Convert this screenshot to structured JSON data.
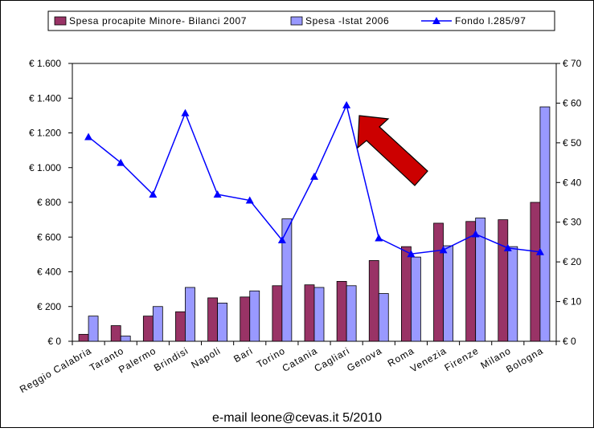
{
  "chart_data": {
    "type": "bar",
    "categories": [
      "Reggio Calabria",
      "Taranto",
      "Palermo",
      "Brindisi",
      "Napoli",
      "Bari",
      "Torino",
      "Catania",
      "Cagliari",
      "Genova",
      "Roma",
      "Venezia",
      "Firenze",
      "Milano",
      "Bologna"
    ],
    "series": [
      {
        "name": "Spesa procapite Minore- Bilanci 2007",
        "type": "bar",
        "axis": "left",
        "color": "#993366",
        "values": [
          40,
          90,
          145,
          170,
          250,
          255,
          320,
          325,
          345,
          465,
          545,
          680,
          690,
          700,
          800
        ]
      },
      {
        "name": "Spesa -Istat 2006",
        "type": "bar",
        "axis": "left",
        "color": "#9999ff",
        "values": [
          145,
          30,
          200,
          310,
          220,
          290,
          705,
          310,
          320,
          275,
          485,
          550,
          710,
          545,
          1350
        ]
      },
      {
        "name": "Fondo l.285/97",
        "type": "line",
        "axis": "right",
        "color": "#0000ff",
        "values": [
          51.5,
          45,
          37,
          57.5,
          37,
          35.5,
          25.5,
          41.5,
          59.5,
          26,
          22,
          23,
          27,
          23.5,
          22.5
        ]
      }
    ],
    "y_left": {
      "ylim": [
        0,
        1600
      ],
      "ticks": [
        0,
        200,
        400,
        600,
        800,
        1000,
        1200,
        1400,
        1600
      ],
      "tick_labels": [
        "€ 0",
        "€ 200",
        "€ 400",
        "€ 600",
        "€ 800",
        "€ 1.000",
        "€ 1.200",
        "€ 1.400",
        "€ 1.600"
      ]
    },
    "y_right": {
      "ylim": [
        0,
        70
      ],
      "ticks": [
        0,
        10,
        20,
        30,
        40,
        50,
        60,
        70
      ],
      "tick_labels": [
        "€ 0",
        "€ 10",
        "€ 20",
        "€ 30",
        "€ 40",
        "€ 50",
        "€ 60",
        "€ 70"
      ]
    },
    "grid": false,
    "legend": "top",
    "annotation": {
      "shape": "arrow",
      "color": "#cc0000",
      "points_to": "Cagliari"
    }
  },
  "footer": "e-mail leone@cevas.it   5/2010"
}
